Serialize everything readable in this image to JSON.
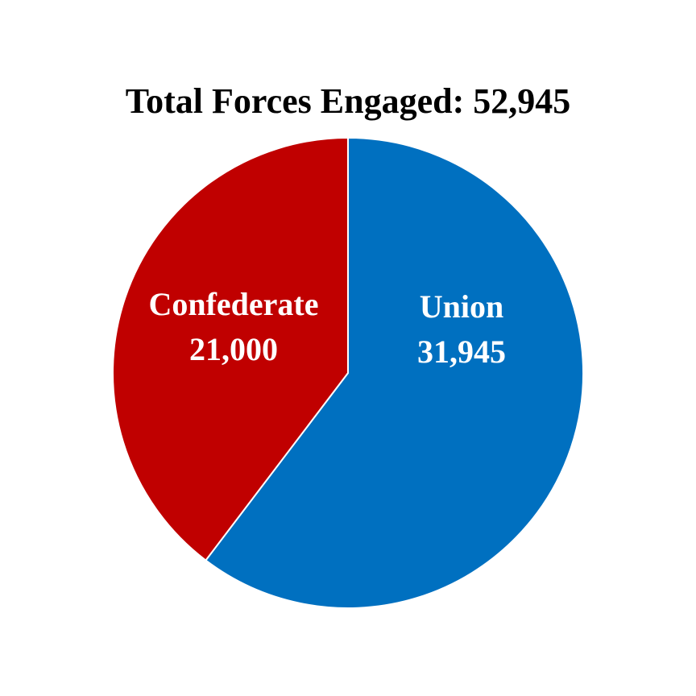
{
  "chart_data": {
    "type": "pie",
    "title": "Total Forces Engaged: 52,945",
    "categories": [
      "Union",
      "Confederate"
    ],
    "values": [
      31945,
      21000
    ],
    "value_labels": [
      "31,945",
      "21,000"
    ],
    "colors": [
      "#0070c0",
      "#c00000"
    ]
  }
}
